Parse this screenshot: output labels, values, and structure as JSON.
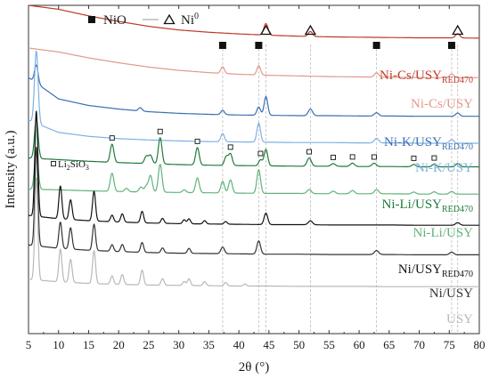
{
  "chart_data": {
    "type": "line",
    "xlabel": "2θ (°)",
    "ylabel": "Intensity (a.u.)",
    "xlim": [
      5,
      80
    ],
    "xticks": [
      5,
      10,
      15,
      20,
      25,
      30,
      35,
      40,
      45,
      50,
      55,
      60,
      65,
      70,
      75,
      80
    ],
    "grid": false,
    "legend_position": "top-left",
    "legend": [
      {
        "marker": "filled-square",
        "label": "NiO"
      },
      {
        "marker": "open-triangle",
        "label": "Ni",
        "superscript": "0"
      }
    ],
    "marker_annotations": [
      {
        "marker": "filled-square",
        "x": [
          37.3,
          43.3,
          62.9,
          75.4
        ]
      },
      {
        "marker": "open-triangle",
        "x": [
          44.5,
          51.9,
          76.4
        ]
      }
    ],
    "li2sio3": {
      "legend_label": "Li",
      "legend_sub1": "2",
      "legend_mid": "SiO",
      "legend_sub2": "3",
      "peaks": [
        18.9,
        26.9,
        33.1,
        38.6,
        43.6,
        51.7,
        55.7,
        58.9,
        62.5,
        69.1,
        72.5
      ]
    },
    "series": [
      {
        "id": "cs-red",
        "name": "Ni-Cs/USY",
        "subscript": "RED470",
        "color": "#c0392b",
        "baseline": [
          1.0,
          0.988,
          0.968,
          0.951,
          0.936,
          0.925,
          0.918,
          0.913,
          0.909,
          0.906,
          0.904,
          0.903,
          0.902,
          0.901,
          0.901,
          0.9
        ],
        "peaks": [
          [
            44.5,
            0.035,
            0.35
          ],
          [
            51.9,
            0.015,
            0.35
          ],
          [
            76.4,
            0.013,
            0.35
          ]
        ]
      },
      {
        "id": "cs",
        "name": "Ni-Cs/USY",
        "subscript": "",
        "color": "#e09a8a",
        "baseline": [
          0.87,
          0.858,
          0.84,
          0.825,
          0.812,
          0.802,
          0.795,
          0.79,
          0.787,
          0.785,
          0.783,
          0.782,
          0.781,
          0.78,
          0.78,
          0.78
        ],
        "peaks": [
          [
            37.3,
            0.02,
            0.3
          ],
          [
            43.3,
            0.028,
            0.3
          ],
          [
            62.9,
            0.013,
            0.35
          ],
          [
            75.4,
            0.011,
            0.35
          ]
        ]
      },
      {
        "id": "k-red",
        "name": "Ni-K/USY",
        "subscript": "RED470",
        "color": "#3a6fb0",
        "baseline": [
          0.78,
          0.715,
          0.695,
          0.684,
          0.676,
          0.671,
          0.668,
          0.666,
          0.665,
          0.664,
          0.664,
          0.663,
          0.663,
          0.662,
          0.662,
          0.662
        ],
        "peaks": [
          [
            6.3,
            0.055,
            0.3
          ],
          [
            23.6,
            0.01,
            0.3
          ],
          [
            37.3,
            0.013,
            0.3
          ],
          [
            43.3,
            0.025,
            0.3
          ],
          [
            44.5,
            0.057,
            0.3
          ],
          [
            51.9,
            0.02,
            0.35
          ],
          [
            62.9,
            0.01,
            0.35
          ],
          [
            76.4,
            0.01,
            0.35
          ]
        ]
      },
      {
        "id": "k",
        "name": "Ni-K/USY",
        "subscript": "",
        "color": "#7fb1e3",
        "baseline": [
          0.65,
          0.613,
          0.601,
          0.594,
          0.59,
          0.587,
          0.585,
          0.584,
          0.583,
          0.582,
          0.582,
          0.581,
          0.581,
          0.58,
          0.58,
          0.58
        ],
        "peaks": [
          [
            6.3,
            0.22,
            0.3
          ],
          [
            37.3,
            0.025,
            0.3
          ],
          [
            43.3,
            0.058,
            0.3
          ],
          [
            62.9,
            0.014,
            0.35
          ],
          [
            75.4,
            0.011,
            0.35
          ]
        ]
      },
      {
        "id": "li-red",
        "name": "",
        "subscript": "",
        "color": "#1f7a3a",
        "baseline": [
          0.535,
          0.53,
          0.525,
          0.521,
          0.518,
          0.515,
          0.513,
          0.512,
          0.511,
          0.51,
          0.51,
          0.509,
          0.509,
          0.508,
          0.508,
          0.508
        ],
        "peaks": [
          [
            6.3,
            0.12,
            0.3
          ],
          [
            18.9,
            0.055,
            0.3
          ],
          [
            24.6,
            0.022,
            0.3
          ],
          [
            25.3,
            0.025,
            0.3
          ],
          [
            26.9,
            0.08,
            0.3
          ],
          [
            33.1,
            0.053,
            0.3
          ],
          [
            37.9,
            0.027,
            0.3
          ],
          [
            38.6,
            0.035,
            0.3
          ],
          [
            43.6,
            0.018,
            0.3
          ],
          [
            44.5,
            0.05,
            0.3
          ],
          [
            51.7,
            0.025,
            0.35
          ],
          [
            55.7,
            0.008,
            0.35
          ],
          [
            58.9,
            0.01,
            0.35
          ],
          [
            62.5,
            0.01,
            0.35
          ],
          [
            69.1,
            0.007,
            0.35
          ],
          [
            72.5,
            0.008,
            0.35
          ],
          [
            76.4,
            0.01,
            0.35
          ]
        ]
      },
      {
        "id": "li",
        "name": "Ni-Li/USY",
        "subscript": "",
        "color": "#5fb37a",
        "baseline": [
          0.44,
          0.438,
          0.435,
          0.433,
          0.431,
          0.43,
          0.429,
          0.428,
          0.427,
          0.427,
          0.426,
          0.426,
          0.426,
          0.425,
          0.425,
          0.425
        ],
        "peaks": [
          [
            6.3,
            0.12,
            0.3
          ],
          [
            18.9,
            0.055,
            0.3
          ],
          [
            21.3,
            0.01,
            0.3
          ],
          [
            23.7,
            0.015,
            0.3
          ],
          [
            24.6,
            0.018,
            0.3
          ],
          [
            25.3,
            0.05,
            0.3
          ],
          [
            26.9,
            0.085,
            0.3
          ],
          [
            30.9,
            0.008,
            0.3
          ],
          [
            33.1,
            0.045,
            0.3
          ],
          [
            37.3,
            0.035,
            0.3
          ],
          [
            38.6,
            0.04,
            0.3
          ],
          [
            43.3,
            0.072,
            0.3
          ],
          [
            51.7,
            0.012,
            0.35
          ],
          [
            55.7,
            0.008,
            0.35
          ],
          [
            58.9,
            0.01,
            0.35
          ],
          [
            62.9,
            0.013,
            0.35
          ],
          [
            69.1,
            0.006,
            0.35
          ],
          [
            72.5,
            0.007,
            0.35
          ],
          [
            75.4,
            0.008,
            0.35
          ]
        ]
      },
      {
        "id": "ni-red",
        "name": "Ni/USY",
        "subscript": "RED470",
        "color": "#111111",
        "baseline": [
          0.36,
          0.35,
          0.344,
          0.34,
          0.337,
          0.335,
          0.334,
          0.333,
          0.332,
          0.332,
          0.331,
          0.331,
          0.331,
          0.33,
          0.33,
          0.33
        ],
        "peaks": [
          [
            6.3,
            0.32,
            0.25
          ],
          [
            10.3,
            0.1,
            0.25
          ],
          [
            12.0,
            0.06,
            0.25
          ],
          [
            15.9,
            0.09,
            0.25
          ],
          [
            18.9,
            0.02,
            0.25
          ],
          [
            20.6,
            0.025,
            0.25
          ],
          [
            23.9,
            0.035,
            0.25
          ],
          [
            27.3,
            0.015,
            0.25
          ],
          [
            30.9,
            0.012,
            0.25
          ],
          [
            31.7,
            0.015,
            0.25
          ],
          [
            34.3,
            0.01,
            0.25
          ],
          [
            37.8,
            0.008,
            0.25
          ],
          [
            44.5,
            0.035,
            0.3
          ],
          [
            51.9,
            0.012,
            0.35
          ],
          [
            76.4,
            0.008,
            0.35
          ]
        ]
      },
      {
        "id": "ni",
        "name": "Ni/USY",
        "subscript": "",
        "color": "#333333",
        "baseline": [
          0.27,
          0.26,
          0.254,
          0.25,
          0.247,
          0.245,
          0.244,
          0.243,
          0.242,
          0.242,
          0.241,
          0.241,
          0.241,
          0.24,
          0.24,
          0.24
        ],
        "peaks": [
          [
            6.3,
            0.3,
            0.25
          ],
          [
            10.3,
            0.08,
            0.25
          ],
          [
            12.0,
            0.065,
            0.25
          ],
          [
            15.9,
            0.08,
            0.25
          ],
          [
            18.9,
            0.02,
            0.25
          ],
          [
            20.6,
            0.022,
            0.25
          ],
          [
            23.9,
            0.03,
            0.25
          ],
          [
            27.3,
            0.015,
            0.25
          ],
          [
            31.7,
            0.015,
            0.25
          ],
          [
            37.3,
            0.02,
            0.3
          ],
          [
            43.3,
            0.04,
            0.3
          ],
          [
            62.9,
            0.012,
            0.35
          ],
          [
            75.4,
            0.008,
            0.35
          ]
        ]
      },
      {
        "id": "usy",
        "name": "USY",
        "subscript": "",
        "color": "#b8b8b8",
        "baseline": [
          0.165,
          0.158,
          0.153,
          0.15,
          0.148,
          0.147,
          0.146,
          0.145,
          0.145,
          0.144,
          0.144,
          0.144,
          0.143,
          0.143,
          0.143,
          0.143
        ],
        "peaks": [
          [
            6.3,
            0.31,
            0.25
          ],
          [
            10.3,
            0.1,
            0.25
          ],
          [
            12.0,
            0.07,
            0.25
          ],
          [
            15.9,
            0.1,
            0.25
          ],
          [
            18.9,
            0.025,
            0.25
          ],
          [
            20.6,
            0.03,
            0.25
          ],
          [
            23.9,
            0.045,
            0.25
          ],
          [
            27.3,
            0.02,
            0.25
          ],
          [
            30.9,
            0.012,
            0.25
          ],
          [
            31.7,
            0.02,
            0.25
          ],
          [
            34.3,
            0.012,
            0.25
          ],
          [
            37.8,
            0.01,
            0.25
          ],
          [
            41.0,
            0.006,
            0.25
          ]
        ]
      }
    ]
  }
}
